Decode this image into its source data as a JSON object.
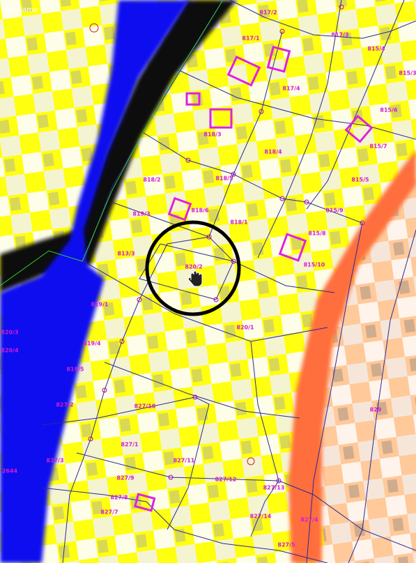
{
  "title": "Wireframe",
  "parcels": [
    {
      "label": "817/2"
    },
    {
      "label": "817/1"
    },
    {
      "label": "817/3"
    },
    {
      "label": "817/4"
    },
    {
      "label": "815/4"
    },
    {
      "label": "815/3"
    },
    {
      "label": "815/6"
    },
    {
      "label": "815/7"
    },
    {
      "label": "815/5"
    },
    {
      "label": "818/3"
    },
    {
      "label": "818/4"
    },
    {
      "label": "818/2"
    },
    {
      "label": "818/5"
    },
    {
      "label": "818/6"
    },
    {
      "label": "819/3"
    },
    {
      "label": "818/1"
    },
    {
      "label": "815/9"
    },
    {
      "label": "815/8"
    },
    {
      "label": "815/10"
    },
    {
      "label": "813/3"
    },
    {
      "label": "820/2"
    },
    {
      "label": "819/1"
    },
    {
      "label": "820/1"
    },
    {
      "label": "819/4"
    },
    {
      "label": "819/5"
    },
    {
      "label": "820/3"
    },
    {
      "label": "820/4"
    },
    {
      "label": "827/2"
    },
    {
      "label": "827/10"
    },
    {
      "label": "829"
    },
    {
      "label": "827/1"
    },
    {
      "label": "827/3"
    },
    {
      "label": "827/11"
    },
    {
      "label": "2644"
    },
    {
      "label": "827/9"
    },
    {
      "label": "827/12"
    },
    {
      "label": "827/13"
    },
    {
      "label": "827/8"
    },
    {
      "label": "827/7"
    },
    {
      "label": "827/14"
    },
    {
      "label": "827/4"
    },
    {
      "label": "827/5"
    }
  ]
}
